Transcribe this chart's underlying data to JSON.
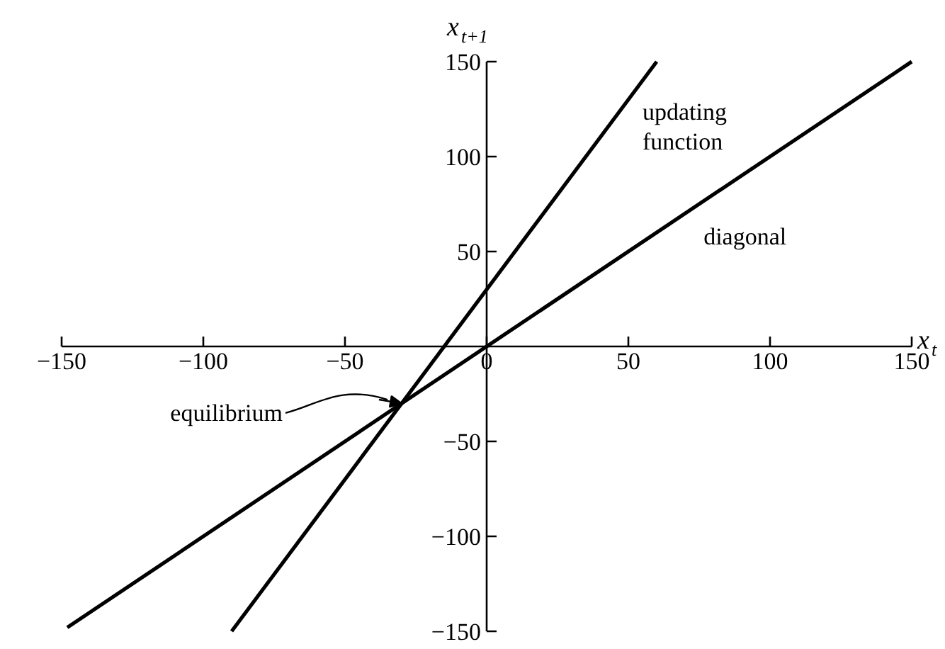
{
  "chart_data": {
    "type": "line",
    "xlabel": "x$_{t}$",
    "ylabel": "x$_{t+1}$",
    "xlim": [
      -150,
      150
    ],
    "ylim": [
      -150,
      150
    ],
    "xticks": [
      -150,
      -100,
      -50,
      0,
      50,
      100,
      150
    ],
    "yticks": [
      -150,
      -100,
      -50,
      50,
      100,
      150
    ],
    "series": [
      {
        "name": "updating function",
        "color": "#000000",
        "x": [
          -90,
          60
        ],
        "values": [
          -150,
          150
        ]
      },
      {
        "name": "diagonal",
        "color": "#000000",
        "x": [
          -148,
          150
        ],
        "values": [
          -148,
          150
        ]
      }
    ],
    "annotations": [
      "equilibrium"
    ],
    "grid": false,
    "marker": "none",
    "line_style": "solid"
  }
}
